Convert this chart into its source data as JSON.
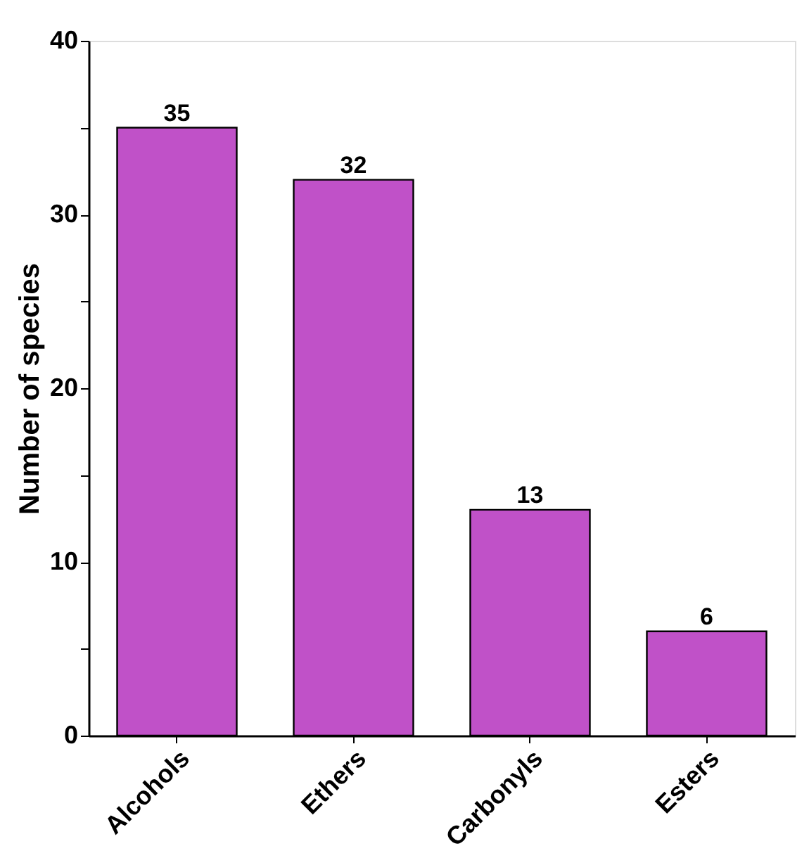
{
  "chart_data": {
    "type": "bar",
    "ylabel": "Number of species",
    "categories": [
      "Alcohols",
      "Ethers",
      "Carbonyls",
      "Esters"
    ],
    "values": [
      35,
      32,
      13,
      6
    ],
    "color": "#c051c8",
    "ylim": [
      0,
      40
    ],
    "yticks": [
      0,
      {
        "value": 5,
        "label": null
      },
      10,
      {
        "value": 15,
        "label": null
      },
      20,
      {
        "value": 25,
        "label": null
      },
      30,
      {
        "value": 35,
        "label": null
      },
      40
    ],
    "data_labels": true,
    "grid": false
  }
}
